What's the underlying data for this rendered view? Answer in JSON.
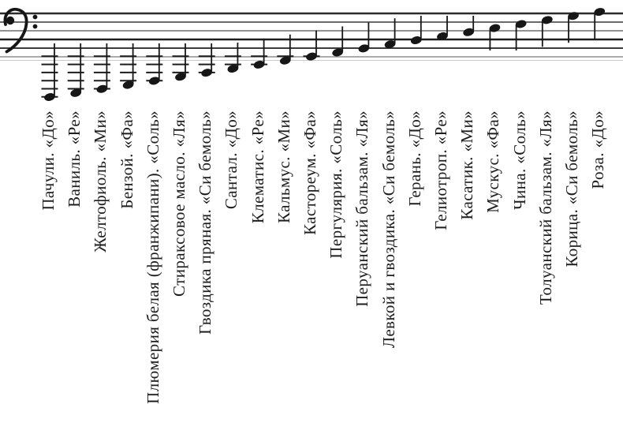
{
  "figure": {
    "clef": "bass",
    "staff_line_count": 5,
    "note_count": 22
  },
  "colors": {
    "ink": "#161616",
    "staff_dark": "#2b2b2b",
    "staff_faint": "#8f8f8f",
    "background": "#ffffff"
  },
  "items": [
    {
      "scent": "Пачули",
      "note": "До",
      "label": "Пачули. «До»"
    },
    {
      "scent": "Ваниль",
      "note": "Ре",
      "label": "Ваниль. «Ре»"
    },
    {
      "scent": "Желтофиоль",
      "note": "Ми",
      "label": "Желтофиоль. «Ми»"
    },
    {
      "scent": "Бензой",
      "note": "Фа",
      "label": "Бензой. «Фа»"
    },
    {
      "scent": "Плюмерия белая (франжипани)",
      "note": "Соль",
      "label": "Плюмерия белая (франжипани). «Соль»"
    },
    {
      "scent": "Стираксовое масло",
      "note": "Ля",
      "label": "Стираксовое масло. «Ля»"
    },
    {
      "scent": "Гвоздика пряная",
      "note": "Си бемоль",
      "label": "Гвоздика пряная. «Си бемоль»"
    },
    {
      "scent": "Сантал",
      "note": "До",
      "label": "Сантал. «До»"
    },
    {
      "scent": "Клематис",
      "note": "Ре",
      "label": "Клематис. «Ре»"
    },
    {
      "scent": "Кальмус",
      "note": "Ми",
      "label": "Кальмус. «Ми»"
    },
    {
      "scent": "Кастореум",
      "note": "Фа",
      "label": "Кастореум. «Фа»"
    },
    {
      "scent": "Пергулярия",
      "note": "Соль",
      "label": "Пергулярия. «Соль»"
    },
    {
      "scent": "Перуанский бальзам",
      "note": "Ля",
      "label": "Перуанский бальзам. «Ля»"
    },
    {
      "scent": "Левкой и гвоздика",
      "note": "Си бемоль",
      "label": "Левкой и гвоздика. «Си бемоль»"
    },
    {
      "scent": "Герань",
      "note": "До",
      "label": "Герань. «До»"
    },
    {
      "scent": "Гелиотроп",
      "note": "Ре",
      "label": "Гелиотроп. «Ре»"
    },
    {
      "scent": "Касатик",
      "note": "Ми",
      "label": "Касатик. «Ми»"
    },
    {
      "scent": "Мускус",
      "note": "Фа",
      "label": "Мускус. «Фа»"
    },
    {
      "scent": "Чина",
      "note": "Соль",
      "label": "Чина. «Соль»"
    },
    {
      "scent": "Толуанский бальзам",
      "note": "Ля",
      "label": "Толуанский бальзам. «Ля»"
    },
    {
      "scent": "Корица",
      "note": "Си бемоль",
      "label": "Корица. «Си бемоль»"
    },
    {
      "scent": "Роза",
      "note": "До",
      "label": "Роза. «До»"
    }
  ]
}
